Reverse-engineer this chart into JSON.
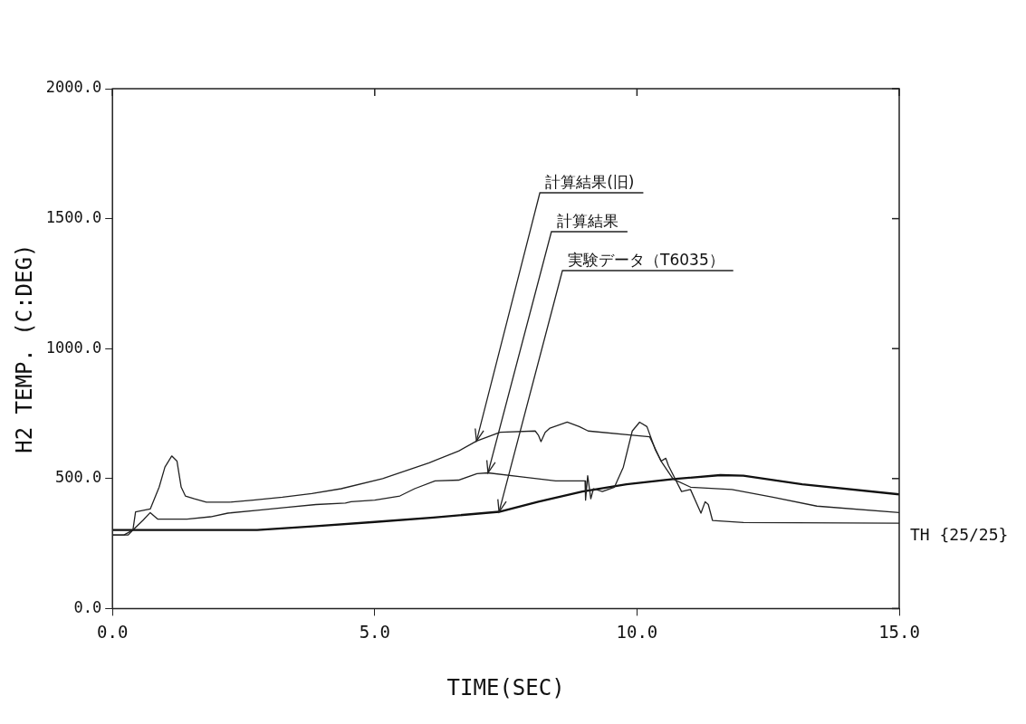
{
  "chart_data": {
    "type": "line",
    "xlabel": "TIME(SEC)",
    "ylabel": "H2 TEMP. (C:DEG)",
    "xlim": [
      0,
      15
    ],
    "ylim": [
      0,
      2000
    ],
    "xticks": [
      {
        "value": 0,
        "label": "0.0"
      },
      {
        "value": 5,
        "label": "5.0"
      },
      {
        "value": 10,
        "label": "10.0"
      },
      {
        "value": 15,
        "label": "15.0"
      }
    ],
    "yticks": [
      {
        "value": 0,
        "label": "0.0"
      },
      {
        "value": 500,
        "label": "500.0"
      },
      {
        "value": 1000,
        "label": "1000.0"
      },
      {
        "value": 1500,
        "label": "1500.0"
      },
      {
        "value": 2000,
        "label": "2000.0"
      }
    ],
    "grid": false,
    "legend": false,
    "marker": "none",
    "line_style": "solid",
    "series": [
      {
        "color": "#222222",
        "x": [
          0,
          0.22,
          0.39,
          0.44,
          0.72,
          0.89,
          1.0,
          1.13,
          1.23,
          1.31,
          1.39,
          1.56,
          1.79,
          2.23,
          2.68,
          3.24,
          3.8,
          4.36,
          5.15,
          5.48,
          6.04,
          6.6,
          6.94,
          7.39,
          8.06,
          8.12,
          8.17,
          8.25,
          8.34,
          8.67,
          8.9,
          9.07,
          9.91,
          10.24,
          10.46,
          10.69,
          11.02,
          11.81,
          12.59,
          13.43,
          15.0
        ],
        "values": [
          283,
          283,
          302,
          372,
          383,
          467,
          544,
          587,
          567,
          467,
          433,
          422,
          409,
          409,
          417,
          428,
          442,
          461,
          500,
          522,
          561,
          606,
          644,
          678,
          683,
          667,
          642,
          678,
          694,
          717,
          700,
          683,
          667,
          661,
          567,
          498,
          467,
          458,
          428,
          394,
          369
        ]
      },
      {
        "color": "#222222",
        "x": [
          0,
          0.3,
          0.41,
          0.58,
          0.72,
          0.86,
          1.08,
          1.42,
          1.87,
          2.2,
          2.76,
          3.32,
          3.88,
          4.44,
          4.55,
          5.0,
          5.48,
          5.76,
          6.15,
          6.6,
          6.95,
          7.16,
          7.83,
          8.45,
          9.01,
          9.02,
          9.06,
          9.12,
          9.17,
          9.34,
          9.57,
          9.74,
          9.91,
          10.05,
          10.19,
          10.35,
          10.46,
          10.55,
          10.6,
          10.85,
          11.02,
          11.22,
          11.3,
          11.36,
          11.44,
          12.03,
          15.0
        ],
        "values": [
          283,
          283,
          306,
          339,
          369,
          344,
          344,
          344,
          353,
          367,
          378,
          389,
          400,
          406,
          411,
          417,
          433,
          461,
          491,
          494,
          519,
          522,
          506,
          491,
          491,
          417,
          511,
          422,
          461,
          450,
          467,
          544,
          683,
          717,
          700,
          611,
          567,
          578,
          550,
          450,
          458,
          367,
          411,
          400,
          339,
          331,
          328
        ]
      },
      {
        "color": "#111111",
        "x": [
          0,
          2.76,
          3.88,
          5.0,
          6.12,
          7.37,
          8.12,
          8.96,
          9.8,
          10.69,
          11.59,
          12.03,
          13.15,
          15.0
        ],
        "values": [
          302,
          302,
          317,
          333,
          350,
          372,
          411,
          450,
          478,
          498,
          513,
          511,
          478,
          439
        ]
      }
    ],
    "annotations": [
      {
        "text": "計算結果(旧)",
        "x": 6.94,
        "y": 644
      },
      {
        "text": "計算結果",
        "x": 7.16,
        "y": 522
      },
      {
        "text": "実験データ（T6035）",
        "x": 7.37,
        "y": 372
      },
      "TH {25/25}"
    ]
  }
}
